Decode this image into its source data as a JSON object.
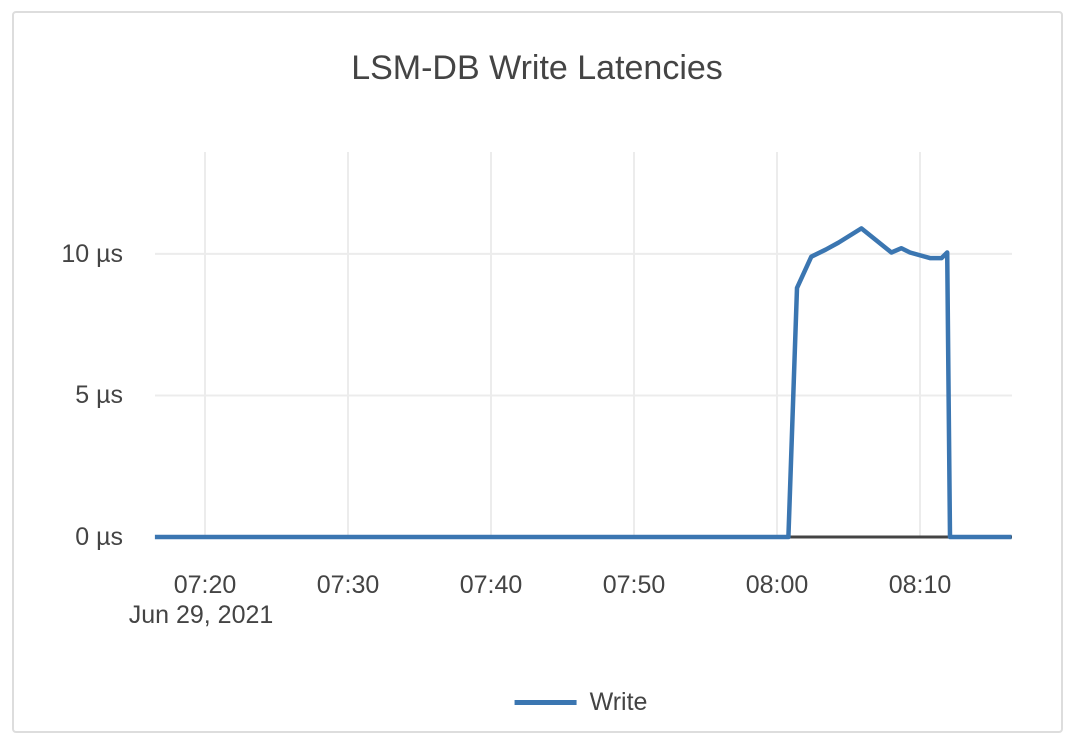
{
  "page": {
    "background_color": "#ffffff",
    "card_border_color": "#dddddd"
  },
  "chart_data": {
    "type": "line",
    "title": "LSM-DB Write Latencies",
    "x_axis": {
      "tick_labels": [
        "07:20",
        "07:30",
        "07:40",
        "07:50",
        "08:00",
        "08:10"
      ],
      "tick_minutes_after_07_20": [
        0,
        10,
        20,
        30,
        40,
        50
      ],
      "date_label": "Jun 29, 2021",
      "range_minutes_after_07_20": [
        -3.5,
        56.4
      ]
    },
    "y_axis": {
      "tick_labels": [
        "0 µs",
        "5 µs",
        "10 µs"
      ],
      "tick_values_us": [
        0,
        5,
        10
      ],
      "range_us": [
        0,
        13.6
      ],
      "unit": "µs"
    },
    "grid": true,
    "legend_position": "bottom-center",
    "gridline_color": "#ececec",
    "zeroline_color": "#444444",
    "text_color": "#444444",
    "series": [
      {
        "name": "Write",
        "color": "#3b76b1",
        "x_minutes_after_07_20": [
          -3.5,
          40.8,
          41.4,
          42.4,
          43.4,
          44.3,
          45.9,
          48.0,
          48.7,
          49.3,
          50.7,
          51.5,
          51.9,
          52.1,
          56.4
        ],
        "x_times": [
          "07:16:30",
          "08:00:48",
          "08:01:24",
          "08:02:24",
          "08:03:24",
          "08:04:18",
          "08:05:54",
          "08:08:00",
          "08:08:42",
          "08:09:18",
          "08:10:42",
          "08:11:30",
          "08:11:54",
          "08:12:06",
          "08:16:24"
        ],
        "y_us": [
          0,
          0,
          8.8,
          9.9,
          10.15,
          10.4,
          10.9,
          10.05,
          10.2,
          10.05,
          9.85,
          9.85,
          10.05,
          0,
          0
        ]
      }
    ]
  }
}
